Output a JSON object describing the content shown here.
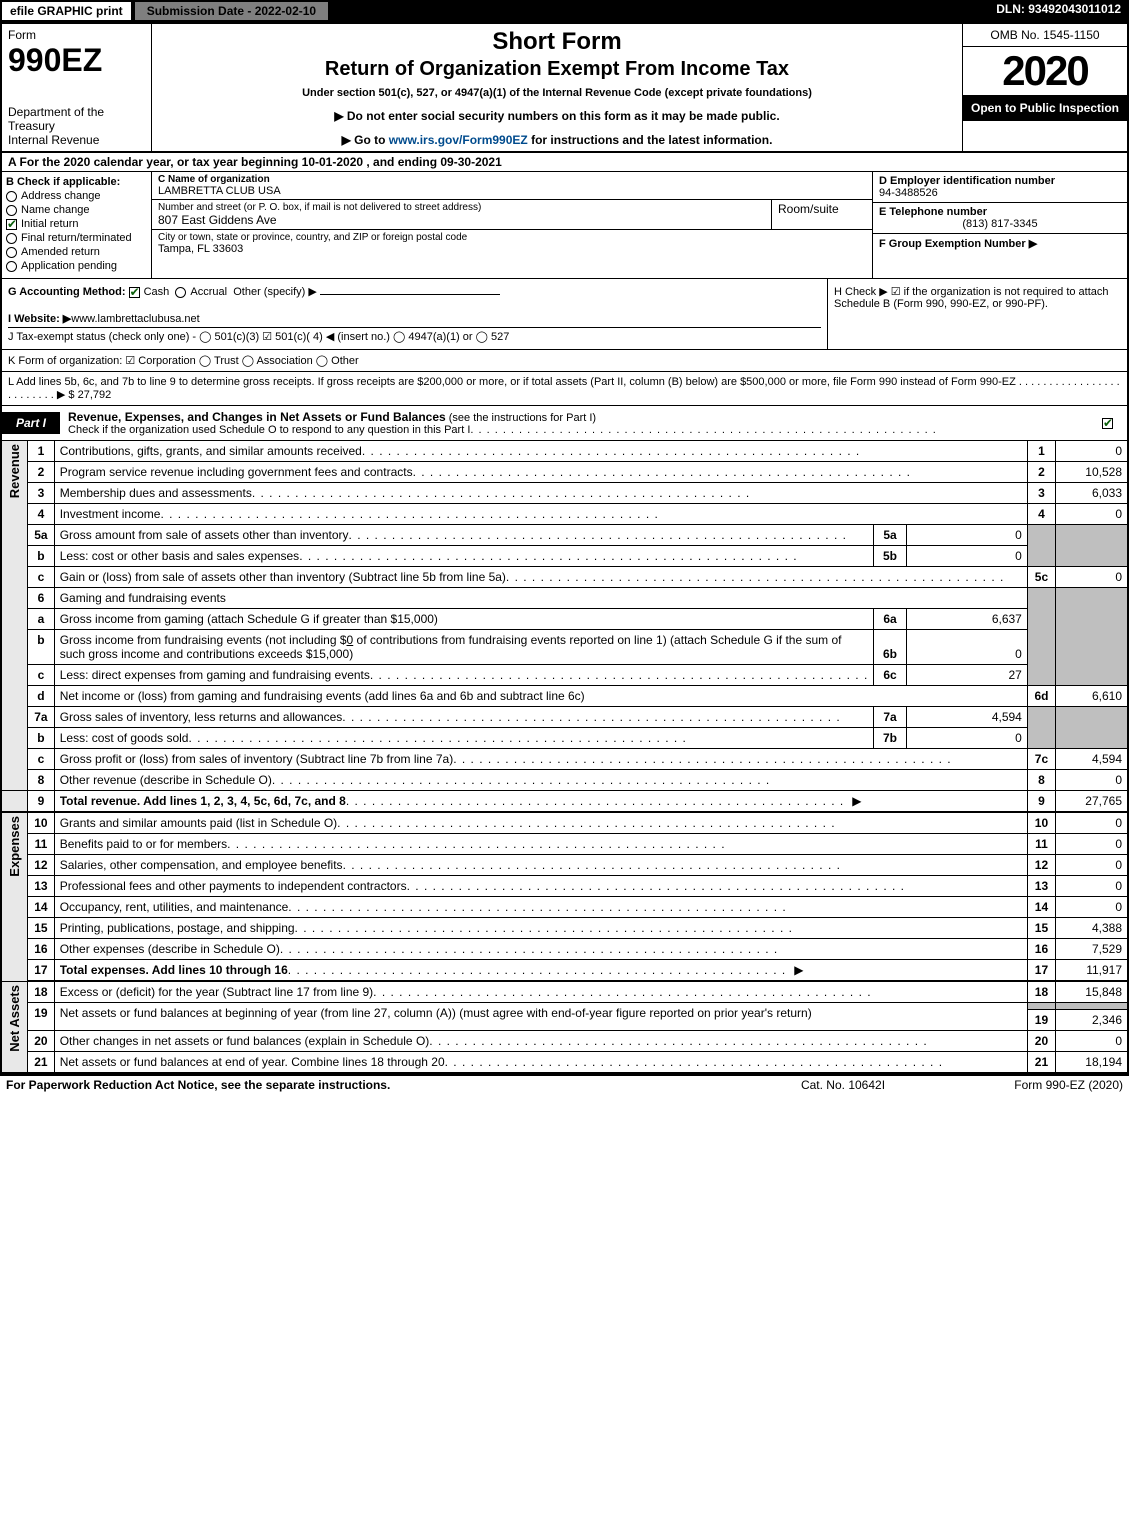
{
  "topbar": {
    "efile": "efile GRAPHIC print",
    "submission": "Submission Date - 2022-02-10",
    "dln": "DLN: 93492043011012"
  },
  "header": {
    "form_label": "Form",
    "form_no": "990EZ",
    "dept": "Department of the Treasury\nInternal Revenue",
    "title1": "Short Form",
    "title2": "Return of Organization Exempt From Income Tax",
    "sub1": "Under section 501(c), 527, or 4947(a)(1) of the Internal Revenue Code (except private foundations)",
    "sub2": "▶ Do not enter social security numbers on this form as it may be made public.",
    "sub3_pre": "▶ Go to ",
    "sub3_link": "www.irs.gov/Form990EZ",
    "sub3_post": " for instructions and the latest information.",
    "omb": "OMB No. 1545-1150",
    "year": "2020",
    "inspect": "Open to Public Inspection"
  },
  "row_a": "A   For the 2020 calendar year, or tax year beginning 10-01-2020 , and ending 09-30-2021",
  "box_b": {
    "label": "B  Check if applicable:",
    "items": [
      {
        "txt": "Address change",
        "checked": false,
        "round": true
      },
      {
        "txt": "Name change",
        "checked": false,
        "round": true
      },
      {
        "txt": "Initial return",
        "checked": true,
        "round": false
      },
      {
        "txt": "Final return/terminated",
        "checked": false,
        "round": true
      },
      {
        "txt": "Amended return",
        "checked": false,
        "round": true
      },
      {
        "txt": "Application pending",
        "checked": false,
        "round": true
      }
    ]
  },
  "box_c": {
    "name_lbl": "C Name of organization",
    "name": "LAMBRETTA CLUB USA",
    "addr_lbl": "Number and street (or P. O. box, if mail is not delivered to street address)",
    "addr": "807 East Giddens Ave",
    "room_lbl": "Room/suite",
    "city_lbl": "City or town, state or province, country, and ZIP or foreign postal code",
    "city": "Tampa, FL  33603"
  },
  "box_def": {
    "d_lbl": "D Employer identification number",
    "d_val": "94-3488526",
    "e_lbl": "E Telephone number",
    "e_val": "(813) 817-3345",
    "f_lbl": "F Group Exemption Number   ▶"
  },
  "row_g": {
    "g": "G Accounting Method:",
    "cash": "Cash",
    "accrual": "Accrual",
    "other": "Other (specify) ▶",
    "i_lbl": "I Website: ▶",
    "i_val": "www.lambrettaclubusa.net",
    "j": "J Tax-exempt status (check only one) - ◯ 501(c)(3)  ☑ 501(c)( 4) ◀ (insert no.) ◯ 4947(a)(1) or ◯ 527"
  },
  "row_h": "H  Check ▶ ☑ if the organization is not required to attach Schedule B (Form 990, 990-EZ, or 990-PF).",
  "row_k": "K Form of organization:  ☑ Corporation  ◯ Trust  ◯ Association  ◯ Other",
  "row_l": {
    "txt": "L Add lines 5b, 6c, and 7b to line 9 to determine gross receipts. If gross receipts are $200,000 or more, or if total assets (Part II, column (B) below) are $500,000 or more, file Form 990 instead of Form 990-EZ",
    "val": "▶ $ 27,792"
  },
  "part1": {
    "label": "Part I",
    "title": "Revenue, Expenses, and Changes in Net Assets or Fund Balances",
    "title_small": " (see the instructions for Part I)",
    "check_line": "Check if the organization used Schedule O to respond to any question in this Part I"
  },
  "sides": {
    "rev": "Revenue",
    "exp": "Expenses",
    "na": "Net Assets"
  },
  "revenue": {
    "l1": {
      "no": "1",
      "desc": "Contributions, gifts, grants, and similar amounts received",
      "ln": "1",
      "val": "0"
    },
    "l2": {
      "no": "2",
      "desc": "Program service revenue including government fees and contracts",
      "ln": "2",
      "val": "10,528"
    },
    "l3": {
      "no": "3",
      "desc": "Membership dues and assessments",
      "ln": "3",
      "val": "6,033"
    },
    "l4": {
      "no": "4",
      "desc": "Investment income",
      "ln": "4",
      "val": "0"
    },
    "l5a": {
      "no": "5a",
      "desc": "Gross amount from sale of assets other than inventory",
      "sub": "5a",
      "subval": "0"
    },
    "l5b": {
      "no": "b",
      "desc": "Less: cost or other basis and sales expenses",
      "sub": "5b",
      "subval": "0"
    },
    "l5c": {
      "no": "c",
      "desc": "Gain or (loss) from sale of assets other than inventory (Subtract line 5b from line 5a)",
      "ln": "5c",
      "val": "0"
    },
    "l6": {
      "no": "6",
      "desc": "Gaming and fundraising events"
    },
    "l6a": {
      "no": "a",
      "desc": "Gross income from gaming (attach Schedule G if greater than $15,000)",
      "sub": "6a",
      "subval": "6,637"
    },
    "l6b": {
      "no": "b",
      "desc1": "Gross income from fundraising events (not including $",
      "desc1b": "0",
      "desc1c": " of contributions from fundraising events reported on line 1) (attach Schedule G if the sum of such gross income and contributions exceeds $15,000)",
      "sub": "6b",
      "subval": "0"
    },
    "l6c": {
      "no": "c",
      "desc": "Less: direct expenses from gaming and fundraising events",
      "sub": "6c",
      "subval": "27"
    },
    "l6d": {
      "no": "d",
      "desc": "Net income or (loss) from gaming and fundraising events (add lines 6a and 6b and subtract line 6c)",
      "ln": "6d",
      "val": "6,610"
    },
    "l7a": {
      "no": "7a",
      "desc": "Gross sales of inventory, less returns and allowances",
      "sub": "7a",
      "subval": "4,594"
    },
    "l7b": {
      "no": "b",
      "desc": "Less: cost of goods sold",
      "sub": "7b",
      "subval": "0"
    },
    "l7c": {
      "no": "c",
      "desc": "Gross profit or (loss) from sales of inventory (Subtract line 7b from line 7a)",
      "ln": "7c",
      "val": "4,594"
    },
    "l8": {
      "no": "8",
      "desc": "Other revenue (describe in Schedule O)",
      "ln": "8",
      "val": "0"
    },
    "l9": {
      "no": "9",
      "desc": "Total revenue. Add lines 1, 2, 3, 4, 5c, 6d, 7c, and 8",
      "ln": "9",
      "val": "27,765",
      "arrow": "▶"
    }
  },
  "expenses": {
    "l10": {
      "no": "10",
      "desc": "Grants and similar amounts paid (list in Schedule O)",
      "ln": "10",
      "val": "0"
    },
    "l11": {
      "no": "11",
      "desc": "Benefits paid to or for members",
      "ln": "11",
      "val": "0"
    },
    "l12": {
      "no": "12",
      "desc": "Salaries, other compensation, and employee benefits",
      "ln": "12",
      "val": "0"
    },
    "l13": {
      "no": "13",
      "desc": "Professional fees and other payments to independent contractors",
      "ln": "13",
      "val": "0"
    },
    "l14": {
      "no": "14",
      "desc": "Occupancy, rent, utilities, and maintenance",
      "ln": "14",
      "val": "0"
    },
    "l15": {
      "no": "15",
      "desc": "Printing, publications, postage, and shipping",
      "ln": "15",
      "val": "4,388"
    },
    "l16": {
      "no": "16",
      "desc": "Other expenses (describe in Schedule O)",
      "ln": "16",
      "val": "7,529"
    },
    "l17": {
      "no": "17",
      "desc": "Total expenses. Add lines 10 through 16",
      "ln": "17",
      "val": "11,917",
      "arrow": "▶"
    }
  },
  "netassets": {
    "l18": {
      "no": "18",
      "desc": "Excess or (deficit) for the year (Subtract line 17 from line 9)",
      "ln": "18",
      "val": "15,848"
    },
    "l19": {
      "no": "19",
      "desc": "Net assets or fund balances at beginning of year (from line 27, column (A)) (must agree with end-of-year figure reported on prior year's return)",
      "ln": "19",
      "val": "2,346"
    },
    "l20": {
      "no": "20",
      "desc": "Other changes in net assets or fund balances (explain in Schedule O)",
      "ln": "20",
      "val": "0"
    },
    "l21": {
      "no": "21",
      "desc": "Net assets or fund balances at end of year. Combine lines 18 through 20",
      "ln": "21",
      "val": "18,194"
    }
  },
  "footer": {
    "l": "For Paperwork Reduction Act Notice, see the separate instructions.",
    "m": "Cat. No. 10642I",
    "r": "Form 990-EZ (2020)"
  }
}
